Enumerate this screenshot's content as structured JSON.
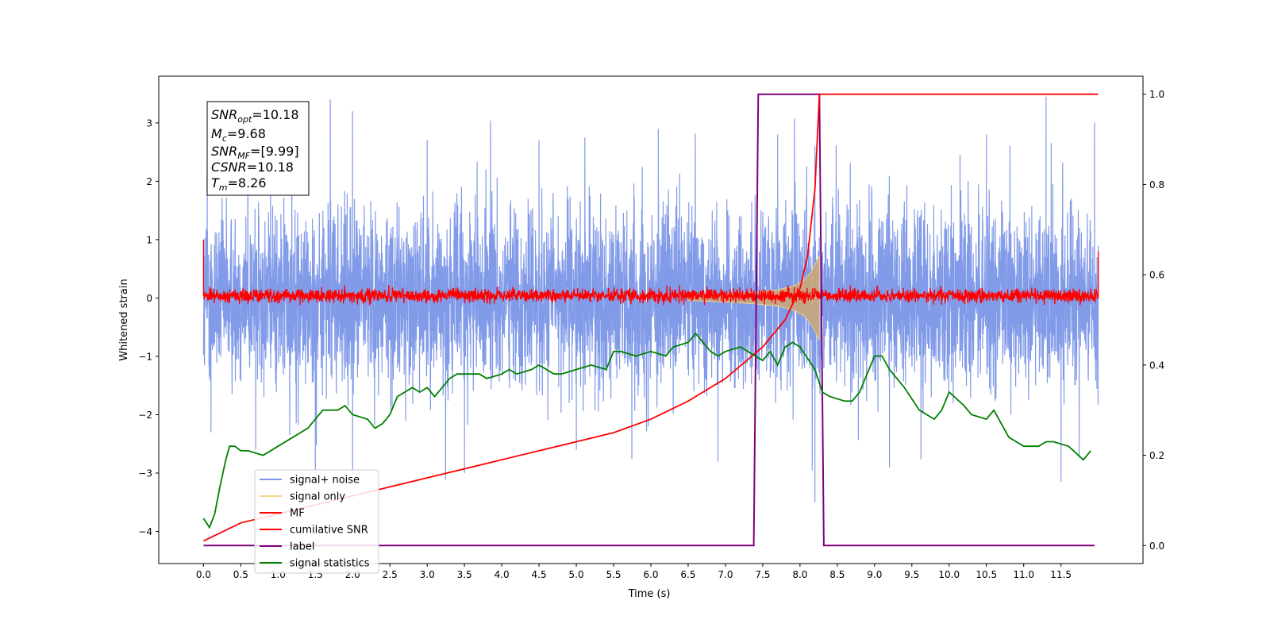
{
  "chart_data": {
    "type": "line",
    "xlabel": "Time (s)",
    "ylabel": "Whitened strain",
    "xlim": [
      -0.6,
      12.6
    ],
    "ylim": [
      -4.55,
      3.8
    ],
    "y2lim": [
      -0.04,
      1.04
    ],
    "x_ticks": [
      0.0,
      0.5,
      1.0,
      1.5,
      2.0,
      2.5,
      3.0,
      3.5,
      4.0,
      4.5,
      5.0,
      5.5,
      6.0,
      6.5,
      7.0,
      7.5,
      8.0,
      8.5,
      9.0,
      9.5,
      10.0,
      10.5,
      11.0,
      11.5
    ],
    "x_tick_labels": [
      "0.0",
      "0.5",
      "1.0",
      "1.5",
      "2.0",
      "2.5",
      "3.0",
      "3.5",
      "4.0",
      "4.5",
      "5.0",
      "5.5",
      "6.0",
      "6.5",
      "7.0",
      "7.5",
      "8.0",
      "8.5",
      "9.0",
      "9.5",
      "10.0",
      "10.5",
      "11.0",
      "11.5"
    ],
    "y_ticks": [
      -4,
      -3,
      -2,
      -1,
      0,
      1,
      2,
      3
    ],
    "y_tick_labels": [
      "−4",
      "−3",
      "−2",
      "−1",
      "0",
      "1",
      "2",
      "3"
    ],
    "y2_ticks": [
      0.0,
      0.2,
      0.4,
      0.6,
      0.8,
      1.0
    ],
    "y2_tick_labels": [
      "0.0",
      "0.2",
      "0.4",
      "0.6",
      "0.8",
      "1.0"
    ],
    "annotation_box": {
      "lines": [
        {
          "sym": "SNR",
          "sub": "opt",
          "value": "=10.18"
        },
        {
          "sym": "M",
          "sub": "c",
          "value": "=9.68"
        },
        {
          "sym": "SNR",
          "sub": "MF",
          "value": "=[9.99]"
        },
        {
          "sym": "CSNR",
          "sub": "",
          "value": "=10.18"
        },
        {
          "sym": "T",
          "sub": "m",
          "value": "=8.26"
        }
      ]
    },
    "legend": {
      "placement": "lower-left",
      "entries": [
        {
          "label": "signal+ noise",
          "color": "#7b96e8"
        },
        {
          "label": "signal only",
          "color": "#f5d68a"
        },
        {
          "label": "MF",
          "color": "#ff0000"
        },
        {
          "label": "cumilative SNR",
          "color": "#ff0000"
        },
        {
          "label": "label",
          "color": "#7f007f"
        },
        {
          "label": "signal statistics",
          "color": "#008000"
        }
      ]
    },
    "series": [
      {
        "name": "signal+ noise",
        "axis": "left",
        "color": "#7b96e8",
        "kind": "noise",
        "x_range": [
          0.0,
          12.0
        ],
        "approx_range": [
          -3.5,
          3.45
        ],
        "peaks_max": [
          [
            0.05,
            2.9
          ],
          [
            1.7,
            3.4
          ],
          [
            2.0,
            3.2
          ],
          [
            3.0,
            2.7
          ],
          [
            4.5,
            2.7
          ],
          [
            6.1,
            2.9
          ],
          [
            7.7,
            2.8
          ],
          [
            8.2,
            2.6
          ],
          [
            10.5,
            2.8
          ],
          [
            11.3,
            3.45
          ],
          [
            11.95,
            3.0
          ]
        ],
        "peaks_min": [
          [
            0.1,
            -2.3
          ],
          [
            0.7,
            -2.6
          ],
          [
            1.5,
            -3.0
          ],
          [
            2.0,
            -3.0
          ],
          [
            3.5,
            -3.0
          ],
          [
            5.0,
            -2.6
          ],
          [
            6.9,
            -2.8
          ],
          [
            8.2,
            -3.5
          ],
          [
            9.2,
            -2.9
          ],
          [
            11.5,
            -3.15
          ]
        ]
      },
      {
        "name": "signal only",
        "axis": "left",
        "color": "#f5d68a",
        "kind": "chirp",
        "x_range": [
          6.5,
          8.26
        ],
        "envelope": [
          [
            6.5,
            0.04
          ],
          [
            7.0,
            0.07
          ],
          [
            7.4,
            0.1
          ],
          [
            7.7,
            0.14
          ],
          [
            7.9,
            0.2
          ],
          [
            8.05,
            0.3
          ],
          [
            8.15,
            0.45
          ],
          [
            8.22,
            0.62
          ],
          [
            8.26,
            0.72
          ]
        ]
      },
      {
        "name": "MF",
        "axis": "left",
        "color": "#ff0000",
        "kind": "noise",
        "x_range": [
          0.0,
          12.0
        ],
        "approx_range": [
          -0.12,
          0.3
        ],
        "edge_values": {
          "start": 1.0,
          "end": 0.8
        }
      },
      {
        "name": "cumilative SNR",
        "axis": "right",
        "color": "#ff0000",
        "x": [
          0.0,
          0.5,
          1.0,
          1.5,
          2.0,
          2.5,
          3.0,
          3.5,
          4.0,
          4.5,
          5.0,
          5.5,
          6.0,
          6.5,
          7.0,
          7.5,
          7.8,
          8.0,
          8.1,
          8.2,
          8.26,
          12.0
        ],
        "values": [
          0.01,
          0.05,
          0.07,
          0.09,
          0.11,
          0.13,
          0.15,
          0.17,
          0.19,
          0.21,
          0.23,
          0.25,
          0.28,
          0.32,
          0.37,
          0.44,
          0.5,
          0.57,
          0.64,
          0.79,
          1.0,
          1.0
        ]
      },
      {
        "name": "label",
        "axis": "right",
        "color": "#7f007f",
        "x": [
          0.0,
          7.38,
          7.44,
          8.26,
          8.32,
          11.95
        ],
        "values": [
          0,
          0,
          1,
          1,
          0,
          0
        ]
      },
      {
        "name": "signal statistics",
        "axis": "right",
        "color": "#008000",
        "x": [
          0.0,
          0.08,
          0.15,
          0.22,
          0.3,
          0.35,
          0.42,
          0.5,
          0.6,
          0.8,
          1.0,
          1.2,
          1.4,
          1.5,
          1.6,
          1.8,
          1.9,
          2.0,
          2.2,
          2.3,
          2.4,
          2.5,
          2.6,
          2.8,
          2.9,
          3.0,
          3.1,
          3.2,
          3.3,
          3.4,
          3.5,
          3.7,
          3.8,
          4.0,
          4.1,
          4.2,
          4.4,
          4.5,
          4.7,
          4.8,
          5.0,
          5.2,
          5.4,
          5.5,
          5.6,
          5.8,
          6.0,
          6.2,
          6.3,
          6.5,
          6.6,
          6.8,
          6.9,
          7.0,
          7.2,
          7.3,
          7.5,
          7.6,
          7.7,
          7.8,
          7.9,
          8.0,
          8.2,
          8.3,
          8.4,
          8.6,
          8.7,
          8.8,
          8.9,
          9.0,
          9.1,
          9.2,
          9.4,
          9.6,
          9.8,
          9.9,
          10.0,
          10.2,
          10.3,
          10.5,
          10.6,
          10.7,
          10.8,
          10.9,
          11.0,
          11.2,
          11.3,
          11.4,
          11.6,
          11.8,
          11.9
        ],
        "values": [
          0.06,
          0.04,
          0.07,
          0.13,
          0.19,
          0.22,
          0.22,
          0.21,
          0.21,
          0.2,
          0.22,
          0.24,
          0.26,
          0.28,
          0.3,
          0.3,
          0.31,
          0.29,
          0.28,
          0.26,
          0.27,
          0.29,
          0.33,
          0.35,
          0.34,
          0.35,
          0.33,
          0.35,
          0.37,
          0.38,
          0.38,
          0.38,
          0.37,
          0.38,
          0.39,
          0.38,
          0.39,
          0.4,
          0.38,
          0.38,
          0.39,
          0.4,
          0.39,
          0.43,
          0.43,
          0.42,
          0.43,
          0.42,
          0.44,
          0.45,
          0.47,
          0.43,
          0.42,
          0.43,
          0.44,
          0.43,
          0.41,
          0.43,
          0.4,
          0.44,
          0.45,
          0.44,
          0.39,
          0.34,
          0.33,
          0.32,
          0.32,
          0.34,
          0.38,
          0.42,
          0.42,
          0.39,
          0.35,
          0.3,
          0.28,
          0.3,
          0.34,
          0.31,
          0.29,
          0.28,
          0.3,
          0.27,
          0.24,
          0.23,
          0.22,
          0.22,
          0.23,
          0.23,
          0.22,
          0.19,
          0.21
        ]
      }
    ]
  }
}
